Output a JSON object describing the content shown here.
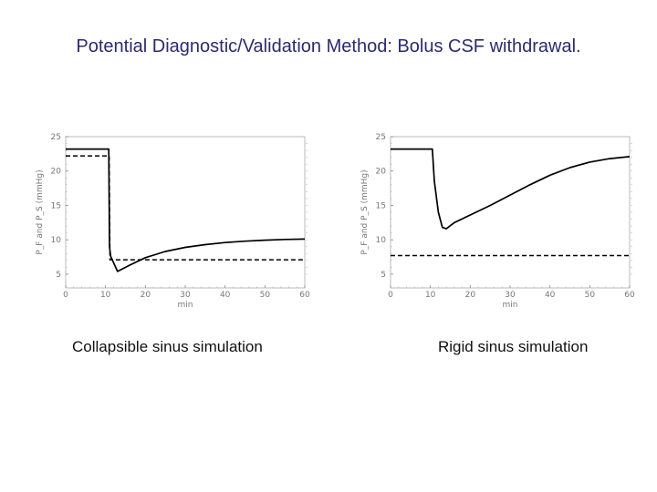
{
  "title": "Potential Diagnostic/Validation Method:  Bolus CSF withdrawal.",
  "captions": [
    "Collapsible sinus simulation",
    "Rigid sinus simulation"
  ],
  "chart_data": [
    {
      "type": "line",
      "xlabel": "min",
      "ylabel": "P_F and P_S (mmHg)",
      "xlim": [
        0,
        60
      ],
      "ylim": [
        3,
        25
      ],
      "xticks": [
        "0",
        "10",
        "20",
        "30",
        "40",
        "50",
        "60"
      ],
      "yticks": [
        "5",
        "10",
        "15",
        "20",
        "25"
      ],
      "series": [
        {
          "style": "solid",
          "x": [
            0,
            10.8,
            11.0,
            11.3,
            13,
            16,
            20,
            25,
            30,
            35,
            40,
            45,
            50,
            55,
            60
          ],
          "y": [
            23.2,
            23.2,
            9.0,
            7.6,
            5.4,
            6.3,
            7.4,
            8.3,
            8.9,
            9.3,
            9.6,
            9.8,
            9.95,
            10.05,
            10.1
          ]
        },
        {
          "style": "dashed",
          "x": [
            0,
            10.9,
            11.1,
            60
          ],
          "y": [
            22.2,
            22.2,
            7.1,
            7.1
          ]
        }
      ]
    },
    {
      "type": "line",
      "xlabel": "min",
      "ylabel": "P_F and P_S (mmHg)",
      "xlim": [
        0,
        60
      ],
      "ylim": [
        3,
        25
      ],
      "xticks": [
        "0",
        "10",
        "20",
        "30",
        "40",
        "50",
        "60"
      ],
      "yticks": [
        "5",
        "10",
        "15",
        "20",
        "25"
      ],
      "series": [
        {
          "style": "solid",
          "x": [
            0,
            10.5,
            11,
            12,
            13,
            14,
            16,
            20,
            25,
            30,
            35,
            40,
            45,
            50,
            55,
            60
          ],
          "y": [
            23.2,
            23.2,
            18.5,
            14.0,
            11.8,
            11.6,
            12.5,
            13.6,
            15.0,
            16.5,
            18.0,
            19.4,
            20.5,
            21.3,
            21.8,
            22.1
          ]
        },
        {
          "style": "dashed",
          "x": [
            0,
            60
          ],
          "y": [
            7.7,
            7.7
          ]
        }
      ]
    }
  ]
}
